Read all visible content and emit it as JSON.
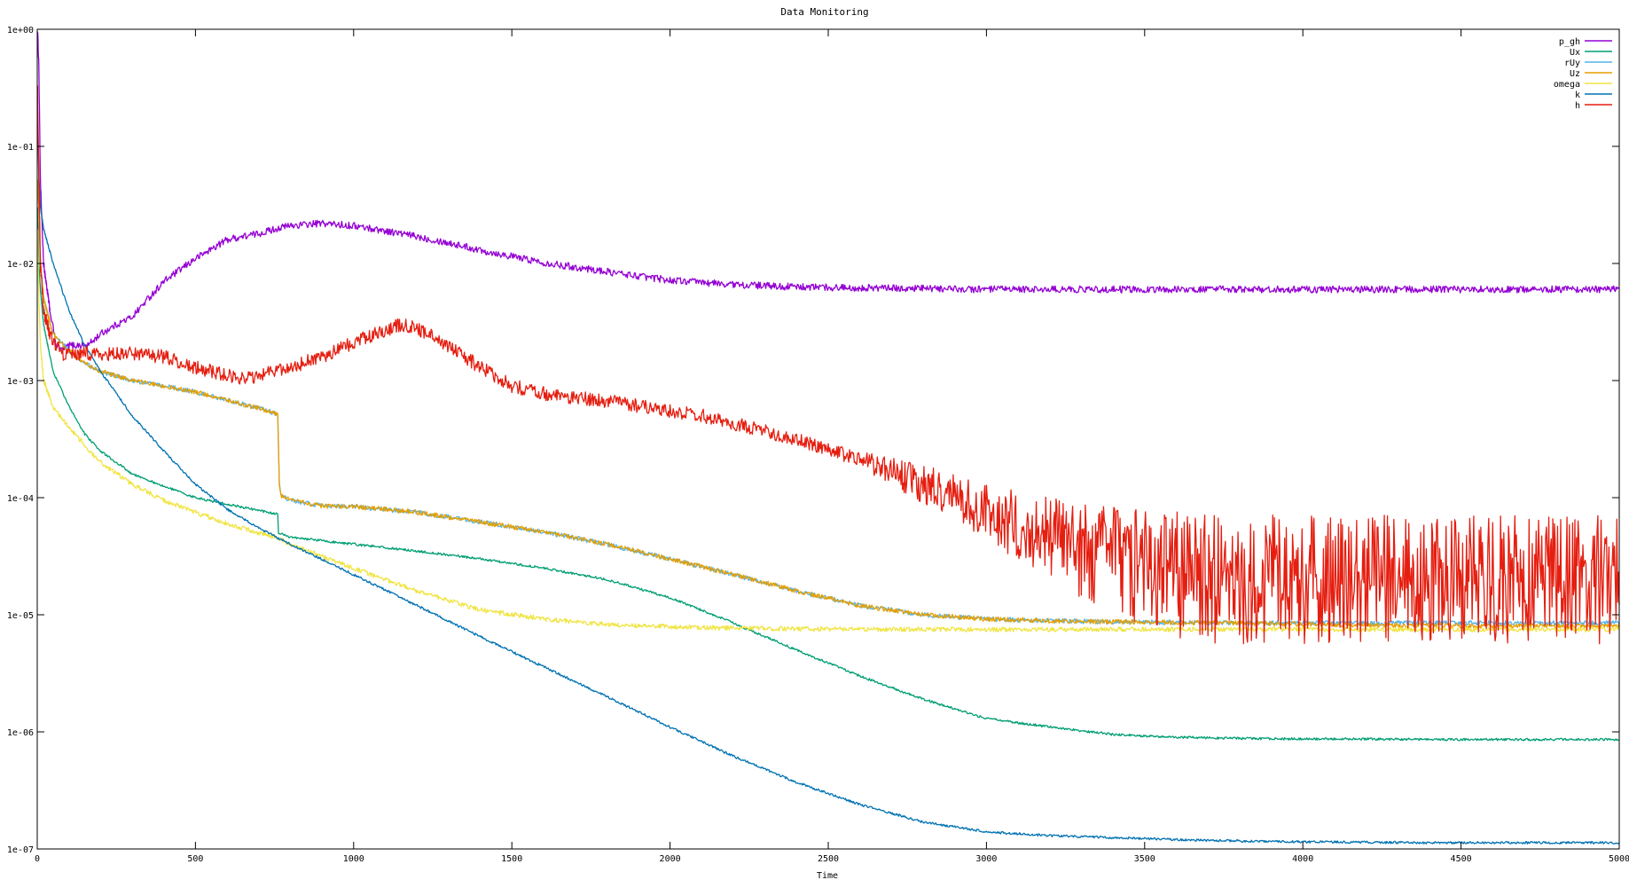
{
  "chart_data": {
    "type": "line",
    "title": "Data Monitoring",
    "xlabel": "Time",
    "ylabel": "",
    "xlim": [
      0,
      5000
    ],
    "ylim": [
      1e-07,
      1
    ],
    "y_scale": "log",
    "grid": false,
    "legend_position": "top-right",
    "x_ticks": [
      {
        "value": 0,
        "label": "0"
      },
      {
        "value": 500,
        "label": "500"
      },
      {
        "value": 1000,
        "label": "1000"
      },
      {
        "value": 1500,
        "label": "1500"
      },
      {
        "value": 2000,
        "label": "2000"
      },
      {
        "value": 2500,
        "label": "2500"
      },
      {
        "value": 3000,
        "label": "3000"
      },
      {
        "value": 3500,
        "label": "3500"
      },
      {
        "value": 4000,
        "label": "4000"
      },
      {
        "value": 4500,
        "label": "4500"
      },
      {
        "value": 5000,
        "label": "5000"
      }
    ],
    "y_ticks": [
      {
        "value": 1,
        "label": "1e+00"
      },
      {
        "value": 0.1,
        "label": "1e-01"
      },
      {
        "value": 0.01,
        "label": "1e-02"
      },
      {
        "value": 0.001,
        "label": "1e-03"
      },
      {
        "value": 0.0001,
        "label": "1e-04"
      },
      {
        "value": 1e-05,
        "label": "1e-05"
      },
      {
        "value": 1e-06,
        "label": "1e-06"
      },
      {
        "value": 1e-07,
        "label": "1e-07"
      }
    ],
    "series": [
      {
        "name": "p_gh",
        "color": "#9400d3",
        "x": [
          1,
          5,
          10,
          20,
          40,
          60,
          80,
          100,
          130,
          160,
          200,
          250,
          300,
          350,
          400,
          500,
          600,
          700,
          760,
          800,
          900,
          1000,
          1100,
          1200,
          1300,
          1400,
          1500,
          1600,
          1700,
          1800,
          1900,
          2000,
          2200,
          2400,
          2600,
          2800,
          3000,
          3200,
          3400,
          3600,
          3800,
          4000,
          4200,
          4400,
          4600,
          4800,
          5000
        ],
        "y": [
          1.0,
          0.5,
          0.05,
          0.01,
          0.004,
          0.002,
          0.0018,
          0.002,
          0.002,
          0.002,
          0.0025,
          0.003,
          0.0035,
          0.005,
          0.007,
          0.011,
          0.016,
          0.018,
          0.02,
          0.021,
          0.022,
          0.021,
          0.019,
          0.017,
          0.015,
          0.013,
          0.0115,
          0.0102,
          0.0093,
          0.0085,
          0.0078,
          0.0072,
          0.0066,
          0.0063,
          0.0062,
          0.0061,
          0.006,
          0.006,
          0.006,
          0.006,
          0.006,
          0.006,
          0.006,
          0.006,
          0.006,
          0.006,
          0.006
        ],
        "noise": 0.03
      },
      {
        "name": "Ux",
        "color": "#009e73",
        "x": [
          1,
          5,
          10,
          20,
          50,
          100,
          150,
          200,
          300,
          400,
          500,
          600,
          700,
          760,
          761,
          800,
          1000,
          1200,
          1400,
          1600,
          1800,
          2000,
          2200,
          2400,
          2600,
          2800,
          3000,
          3200,
          3400,
          3600,
          3800,
          4000,
          4200,
          4400,
          4600,
          4800,
          5000
        ],
        "y": [
          0.03,
          0.01,
          0.006,
          0.003,
          0.0012,
          0.0006,
          0.00035,
          0.00025,
          0.00016,
          0.000125,
          0.0001,
          8.8e-05,
          7.8e-05,
          7.2e-05,
          5e-05,
          4.6e-05,
          4e-05,
          3.5e-05,
          3e-05,
          2.5e-05,
          2e-05,
          1.4e-05,
          8.5e-06,
          5e-06,
          3e-06,
          1.9e-06,
          1.3e-06,
          1.1e-06,
          9.5e-07,
          9e-07,
          8.8e-07,
          8.7e-07,
          8.7e-07,
          8.6e-07,
          8.6e-07,
          8.6e-07,
          8.6e-07
        ],
        "noise": 0.01
      },
      {
        "name": "rUy",
        "color": "#56b4e9",
        "x": [
          1,
          5,
          10,
          20,
          50,
          100,
          150,
          200,
          300,
          400,
          500,
          600,
          700,
          760,
          765,
          770,
          800,
          900,
          1000,
          1200,
          1400,
          1600,
          1800,
          2000,
          2200,
          2400,
          2600,
          2800,
          3000,
          3200,
          3400,
          3600,
          3800,
          4000,
          4200,
          4400,
          4600,
          4800,
          5000
        ],
        "y": [
          0.05,
          0.03,
          0.01,
          0.005,
          0.0025,
          0.0018,
          0.0014,
          0.0012,
          0.001,
          0.0009,
          0.0008,
          0.00068,
          0.00058,
          0.00052,
          0.00013,
          0.000105,
          9.5e-05,
          8.5e-05,
          8.4e-05,
          7.5e-05,
          6.2e-05,
          5.1e-05,
          4e-05,
          3e-05,
          2.2e-05,
          1.6e-05,
          1.2e-05,
          1e-05,
          9.2e-06,
          8.9e-06,
          8.7e-06,
          8.6e-06,
          8.5e-06,
          8.5e-06,
          8.5e-06,
          8.5e-06,
          8.5e-06,
          8.5e-06,
          8.5e-06
        ],
        "noise": 0.02
      },
      {
        "name": "Uz",
        "color": "#e69f00",
        "x": [
          1,
          5,
          10,
          20,
          50,
          100,
          150,
          200,
          300,
          400,
          500,
          600,
          700,
          760,
          765,
          770,
          800,
          900,
          1000,
          1200,
          1400,
          1600,
          1800,
          2000,
          2200,
          2400,
          2600,
          2800,
          3000,
          3200,
          3400,
          3600,
          3800,
          4000,
          4200,
          4400,
          4600,
          4800,
          5000
        ],
        "y": [
          0.05,
          0.03,
          0.01,
          0.005,
          0.0025,
          0.0018,
          0.0014,
          0.0012,
          0.001,
          0.0009,
          0.0008,
          0.00068,
          0.00058,
          0.00052,
          0.00013,
          0.000105,
          9.5e-05,
          8.5e-05,
          8.4e-05,
          7.5e-05,
          6.2e-05,
          5.1e-05,
          4e-05,
          3e-05,
          2.2e-05,
          1.6e-05,
          1.2e-05,
          1e-05,
          9.2e-06,
          8.9e-06,
          8.7e-06,
          8.6e-06,
          8.5e-06,
          8.3e-06,
          8.2e-06,
          8.1e-06,
          8e-06,
          8e-06,
          8e-06
        ],
        "noise": 0.02
      },
      {
        "name": "omega",
        "color": "#f0e442",
        "x": [
          1,
          5,
          10,
          20,
          50,
          100,
          150,
          200,
          300,
          400,
          500,
          600,
          700,
          760,
          800,
          1000,
          1200,
          1400,
          1600,
          1800,
          2000,
          2200,
          2400,
          2600,
          2800,
          3000,
          3200,
          3400,
          3600,
          3800,
          4000,
          4200,
          4400,
          4600,
          4800,
          5000
        ],
        "y": [
          0.02,
          0.005,
          0.002,
          0.001,
          0.0006,
          0.0004,
          0.00028,
          0.0002,
          0.00013,
          9.5e-05,
          7.5e-05,
          6e-05,
          5e-05,
          4.5e-05,
          4e-05,
          2.5e-05,
          1.6e-05,
          1.1e-05,
          9.2e-06,
          8.3e-06,
          7.9e-06,
          7.7e-06,
          7.6e-06,
          7.5e-06,
          7.5e-06,
          7.5e-06,
          7.5e-06,
          7.5e-06,
          7.5e-06,
          7.5e-06,
          7.5e-06,
          7.5e-06,
          7.5e-06,
          7.5e-06,
          7.5e-06,
          7.5e-06
        ],
        "noise": 0.02
      },
      {
        "name": "k",
        "color": "#0072b2",
        "x": [
          1,
          5,
          10,
          20,
          50,
          100,
          150,
          200,
          300,
          400,
          500,
          600,
          700,
          800,
          1000,
          1200,
          1400,
          1600,
          1800,
          2000,
          2200,
          2400,
          2600,
          2800,
          3000,
          3200,
          3400,
          3600,
          3800,
          4000,
          4200,
          4400,
          4600,
          4800,
          5000
        ],
        "y": [
          0.2,
          0.06,
          0.03,
          0.02,
          0.01,
          0.004,
          0.002,
          0.0012,
          0.0005,
          0.00025,
          0.00013,
          8e-05,
          5.5e-05,
          4e-05,
          2.2e-05,
          1.2e-05,
          6.5e-06,
          3.6e-06,
          2e-06,
          1.1e-06,
          6.2e-07,
          3.7e-07,
          2.4e-07,
          1.7e-07,
          1.4e-07,
          1.3e-07,
          1.25e-07,
          1.2e-07,
          1.17e-07,
          1.15e-07,
          1.14e-07,
          1.13e-07,
          1.13e-07,
          1.13e-07,
          1.13e-07
        ],
        "noise": 0.01
      },
      {
        "name": "h",
        "color": "#e51e10",
        "x": [
          1,
          5,
          10,
          20,
          40,
          60,
          80,
          100,
          150,
          200,
          300,
          400,
          500,
          600,
          650,
          700,
          800,
          900,
          1000,
          1100,
          1150,
          1200,
          1300,
          1400,
          1500,
          1600,
          1700,
          1800,
          1900,
          2000,
          2100,
          2200,
          2300,
          2400,
          2500,
          2600,
          2700,
          2800,
          2900,
          3000,
          3100,
          3200,
          3300,
          3400,
          3500,
          3600,
          3700,
          3800,
          4000,
          4200,
          4400,
          4600,
          4800,
          5000
        ],
        "y": [
          0.3,
          0.05,
          0.01,
          0.004,
          0.0025,
          0.002,
          0.0017,
          0.0017,
          0.0017,
          0.0017,
          0.0017,
          0.0016,
          0.0013,
          0.0011,
          0.00105,
          0.0011,
          0.0013,
          0.0016,
          0.0021,
          0.0027,
          0.003,
          0.0028,
          0.002,
          0.0013,
          0.0009,
          0.00078,
          0.00072,
          0.00067,
          0.00061,
          0.00055,
          0.0005,
          0.00043,
          0.00037,
          0.00031,
          0.00026,
          0.00021,
          0.00017,
          0.00013,
          0.0001,
          7.8e-05,
          5.8e-05,
          4.5e-05,
          3.5e-05,
          3e-05,
          2.5e-05,
          2.2e-05,
          2e-05,
          2e-05,
          2e-05,
          2e-05,
          2e-05,
          2e-05,
          2e-05,
          2e-05
        ],
        "noise": 0.06,
        "noise_growth": [
          [
            2600,
            0.08
          ],
          [
            3000,
            0.25
          ],
          [
            3400,
            0.45
          ],
          [
            3600,
            0.55
          ],
          [
            5000,
            0.55
          ]
        ]
      }
    ]
  }
}
